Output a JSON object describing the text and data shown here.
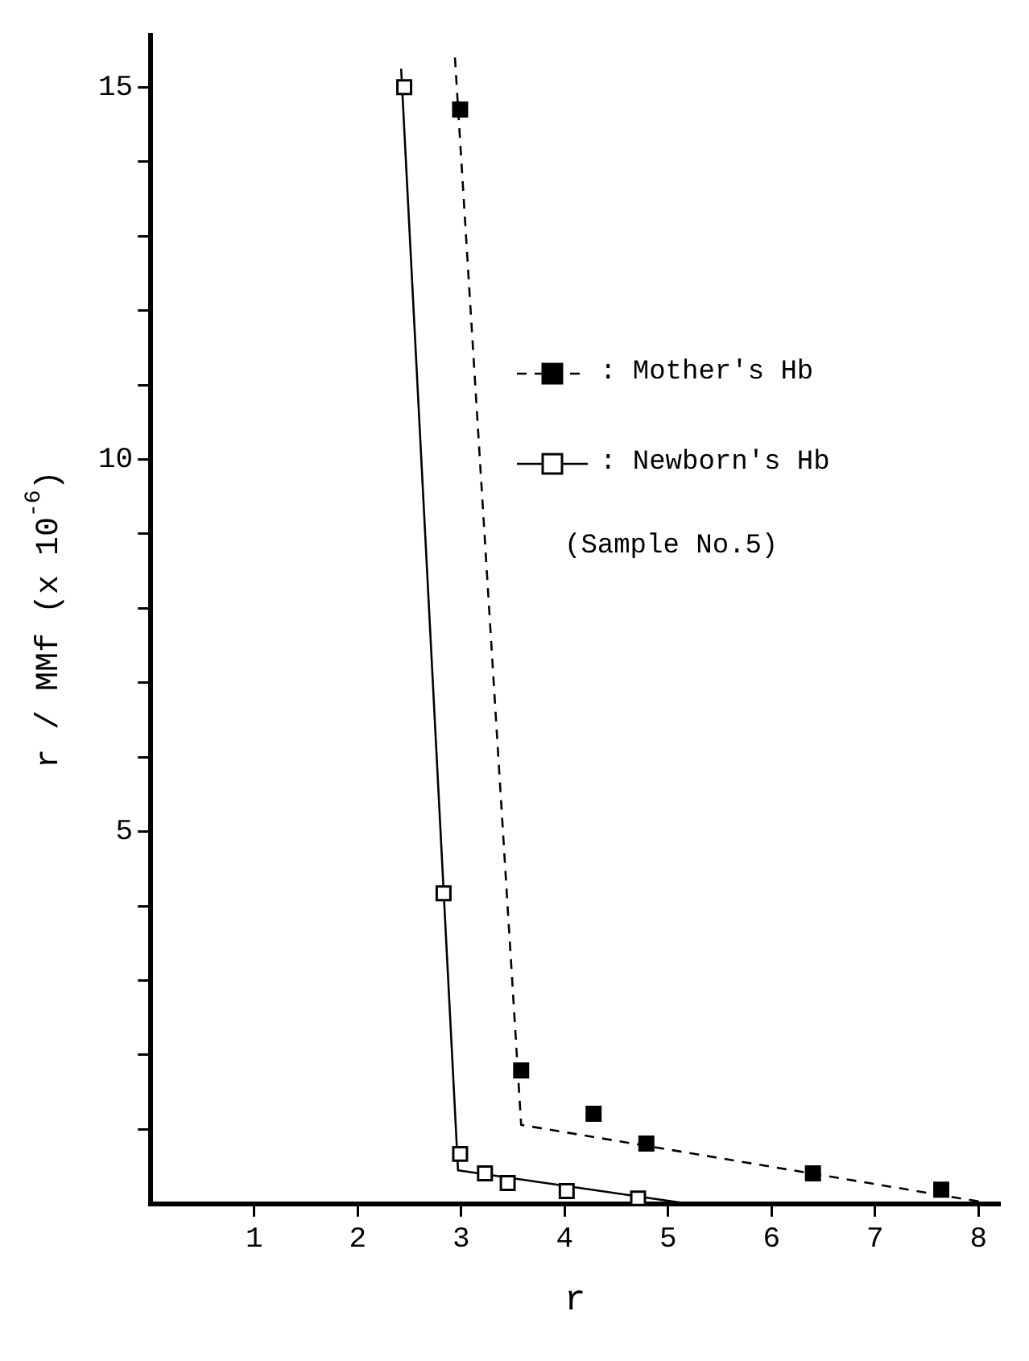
{
  "chart_data": {
    "type": "scatter",
    "xlabel": "r",
    "ylabel": "r / MMf (x 10$^{-6}$)",
    "xlim": [
      0,
      8.2
    ],
    "ylim": [
      0,
      15.7
    ],
    "xticks": [
      1,
      2,
      3,
      4,
      5,
      6,
      7,
      8
    ],
    "yticks": [
      {
        "value": 1,
        "label": null
      },
      {
        "value": 2,
        "label": null
      },
      {
        "value": 3,
        "label": null
      },
      {
        "value": 4,
        "label": null
      },
      5,
      {
        "value": 6,
        "label": null
      },
      {
        "value": 7,
        "label": null
      },
      {
        "value": 8,
        "label": null
      },
      {
        "value": 9,
        "label": null
      },
      10,
      {
        "value": 11,
        "label": null
      },
      {
        "value": 12,
        "label": null
      },
      {
        "value": 13,
        "label": null
      },
      {
        "value": 14,
        "label": null
      },
      15
    ],
    "grid": false,
    "legend": "right",
    "marker": "square",
    "annotations": [
      "(Sample No.5)"
    ],
    "series": [
      {
        "name": ": Mother's Hb",
        "color": "#000000",
        "line_style": "dashed",
        "x": [
          2.99,
          3.58,
          4.28,
          4.79,
          6.4,
          7.64
        ],
        "values": [
          14.7,
          1.79,
          1.21,
          0.81,
          0.41,
          0.19
        ]
      },
      {
        "name": ": Newborn's Hb",
        "color": "#ffffff",
        "line_style": "solid",
        "x": [
          2.45,
          2.83,
          2.99,
          3.23,
          3.45,
          4.02,
          4.71
        ],
        "values": [
          15.0,
          4.17,
          0.67,
          0.41,
          0.28,
          0.17,
          0.07
        ]
      },
      {
        "type": "line",
        "color": "#000000",
        "line_style": "dashed",
        "marker": "none",
        "x": [
          2.94,
          3.58,
          8.14
        ],
        "values": [
          15.4,
          1.06,
          0
        ]
      },
      {
        "type": "line",
        "color": "#000000",
        "line_style": "solid",
        "marker": "none",
        "x": [
          2.42,
          2.97,
          5.2
        ],
        "values": [
          15.25,
          0.45,
          0
        ]
      }
    ]
  }
}
